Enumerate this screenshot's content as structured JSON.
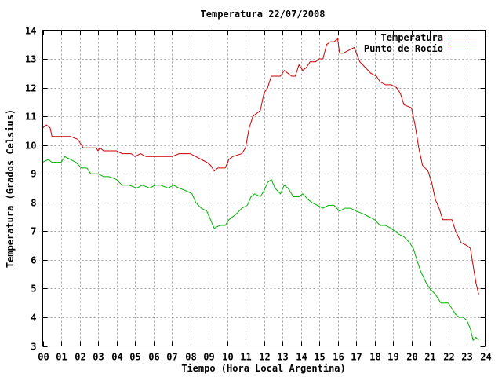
{
  "chart_data": {
    "type": "line",
    "title": "Temperatura 22/07/2008",
    "xlabel": "Tiempo (Hora Local Argentina)",
    "ylabel": "Temperatura (Grados Celsius)",
    "xlim": [
      0,
      24
    ],
    "ylim": [
      3,
      14
    ],
    "xticks": [
      0,
      1,
      2,
      3,
      4,
      5,
      6,
      7,
      8,
      9,
      10,
      11,
      12,
      13,
      14,
      15,
      16,
      17,
      18,
      19,
      20,
      21,
      22,
      23,
      24
    ],
    "xtick_labels": [
      "00",
      "01",
      "02",
      "03",
      "04",
      "05",
      "06",
      "07",
      "08",
      "09",
      "10",
      "11",
      "12",
      "13",
      "14",
      "15",
      "16",
      "17",
      "18",
      "19",
      "20",
      "21",
      "22",
      "23",
      "24"
    ],
    "yticks": [
      3,
      4,
      5,
      6,
      7,
      8,
      9,
      10,
      11,
      12,
      13,
      14
    ],
    "ytick_labels": [
      "3",
      "4",
      "5",
      "6",
      "7",
      "8",
      "9",
      "10",
      "11",
      "12",
      "13",
      "14"
    ],
    "grid": true,
    "legend_position": "top-right",
    "series": [
      {
        "name": "Temperatura",
        "color": "#cc0000",
        "points": [
          [
            0.0,
            10.6
          ],
          [
            0.2,
            10.7
          ],
          [
            0.4,
            10.6
          ],
          [
            0.5,
            10.3
          ],
          [
            1.0,
            10.3
          ],
          [
            1.5,
            10.3
          ],
          [
            1.9,
            10.2
          ],
          [
            2.2,
            9.9
          ],
          [
            2.5,
            9.9
          ],
          [
            2.9,
            9.9
          ],
          [
            3.0,
            9.8
          ],
          [
            3.1,
            9.9
          ],
          [
            3.3,
            9.8
          ],
          [
            3.7,
            9.8
          ],
          [
            4.0,
            9.8
          ],
          [
            4.3,
            9.7
          ],
          [
            4.8,
            9.7
          ],
          [
            5.0,
            9.6
          ],
          [
            5.3,
            9.7
          ],
          [
            5.6,
            9.6
          ],
          [
            6.0,
            9.6
          ],
          [
            6.5,
            9.6
          ],
          [
            7.0,
            9.6
          ],
          [
            7.4,
            9.7
          ],
          [
            8.0,
            9.7
          ],
          [
            8.3,
            9.6
          ],
          [
            8.6,
            9.5
          ],
          [
            8.9,
            9.4
          ],
          [
            9.1,
            9.3
          ],
          [
            9.3,
            9.1
          ],
          [
            9.5,
            9.2
          ],
          [
            9.9,
            9.2
          ],
          [
            10.1,
            9.5
          ],
          [
            10.3,
            9.6
          ],
          [
            10.8,
            9.7
          ],
          [
            11.0,
            9.9
          ],
          [
            11.2,
            10.6
          ],
          [
            11.4,
            11.0
          ],
          [
            11.8,
            11.2
          ],
          [
            12.0,
            11.8
          ],
          [
            12.2,
            12.0
          ],
          [
            12.4,
            12.4
          ],
          [
            12.9,
            12.4
          ],
          [
            13.1,
            12.6
          ],
          [
            13.3,
            12.5
          ],
          [
            13.5,
            12.4
          ],
          [
            13.7,
            12.4
          ],
          [
            13.9,
            12.8
          ],
          [
            14.1,
            12.6
          ],
          [
            14.3,
            12.7
          ],
          [
            14.5,
            12.9
          ],
          [
            14.8,
            12.9
          ],
          [
            15.0,
            13.0
          ],
          [
            15.2,
            13.0
          ],
          [
            15.4,
            13.5
          ],
          [
            15.6,
            13.6
          ],
          [
            15.8,
            13.6
          ],
          [
            16.0,
            13.7
          ],
          [
            16.1,
            13.2
          ],
          [
            16.3,
            13.2
          ],
          [
            16.6,
            13.3
          ],
          [
            16.9,
            13.4
          ],
          [
            17.2,
            12.9
          ],
          [
            17.5,
            12.7
          ],
          [
            17.8,
            12.5
          ],
          [
            18.1,
            12.4
          ],
          [
            18.3,
            12.2
          ],
          [
            18.6,
            12.1
          ],
          [
            18.9,
            12.1
          ],
          [
            19.2,
            12.0
          ],
          [
            19.4,
            11.8
          ],
          [
            19.6,
            11.4
          ],
          [
            20.0,
            11.3
          ],
          [
            20.2,
            10.7
          ],
          [
            20.4,
            9.9
          ],
          [
            20.6,
            9.3
          ],
          [
            20.9,
            9.1
          ],
          [
            21.1,
            8.7
          ],
          [
            21.3,
            8.1
          ],
          [
            21.5,
            7.8
          ],
          [
            21.7,
            7.4
          ],
          [
            22.2,
            7.4
          ],
          [
            22.4,
            7.0
          ],
          [
            22.7,
            6.6
          ],
          [
            23.0,
            6.5
          ],
          [
            23.2,
            6.4
          ],
          [
            23.4,
            5.6
          ],
          [
            23.5,
            5.2
          ],
          [
            23.65,
            4.8
          ]
        ]
      },
      {
        "name": "Punto de Rocío",
        "color": "#00b000",
        "points": [
          [
            0.0,
            9.4
          ],
          [
            0.3,
            9.5
          ],
          [
            0.5,
            9.4
          ],
          [
            1.0,
            9.4
          ],
          [
            1.2,
            9.6
          ],
          [
            1.5,
            9.5
          ],
          [
            1.8,
            9.4
          ],
          [
            2.1,
            9.2
          ],
          [
            2.4,
            9.2
          ],
          [
            2.6,
            9.0
          ],
          [
            3.0,
            9.0
          ],
          [
            3.3,
            8.9
          ],
          [
            3.6,
            8.9
          ],
          [
            4.0,
            8.8
          ],
          [
            4.3,
            8.6
          ],
          [
            4.7,
            8.6
          ],
          [
            5.1,
            8.5
          ],
          [
            5.4,
            8.6
          ],
          [
            5.8,
            8.5
          ],
          [
            6.1,
            8.6
          ],
          [
            6.4,
            8.6
          ],
          [
            6.8,
            8.5
          ],
          [
            7.1,
            8.6
          ],
          [
            7.4,
            8.5
          ],
          [
            7.8,
            8.4
          ],
          [
            8.1,
            8.3
          ],
          [
            8.3,
            8.0
          ],
          [
            8.6,
            7.8
          ],
          [
            8.9,
            7.7
          ],
          [
            9.1,
            7.4
          ],
          [
            9.3,
            7.1
          ],
          [
            9.6,
            7.2
          ],
          [
            9.9,
            7.2
          ],
          [
            10.1,
            7.4
          ],
          [
            10.5,
            7.6
          ],
          [
            10.8,
            7.8
          ],
          [
            11.1,
            7.9
          ],
          [
            11.3,
            8.2
          ],
          [
            11.5,
            8.3
          ],
          [
            11.8,
            8.2
          ],
          [
            12.0,
            8.4
          ],
          [
            12.2,
            8.7
          ],
          [
            12.4,
            8.8
          ],
          [
            12.6,
            8.5
          ],
          [
            12.9,
            8.3
          ],
          [
            13.1,
            8.6
          ],
          [
            13.3,
            8.5
          ],
          [
            13.6,
            8.2
          ],
          [
            13.9,
            8.2
          ],
          [
            14.1,
            8.3
          ],
          [
            14.4,
            8.1
          ],
          [
            14.6,
            8.0
          ],
          [
            14.9,
            7.9
          ],
          [
            15.2,
            7.8
          ],
          [
            15.5,
            7.9
          ],
          [
            15.8,
            7.9
          ],
          [
            16.1,
            7.7
          ],
          [
            16.4,
            7.8
          ],
          [
            16.7,
            7.8
          ],
          [
            17.0,
            7.7
          ],
          [
            17.4,
            7.6
          ],
          [
            17.7,
            7.5
          ],
          [
            18.0,
            7.4
          ],
          [
            18.3,
            7.2
          ],
          [
            18.6,
            7.2
          ],
          [
            18.9,
            7.1
          ],
          [
            19.1,
            7.0
          ],
          [
            19.3,
            6.9
          ],
          [
            19.6,
            6.8
          ],
          [
            19.9,
            6.6
          ],
          [
            20.1,
            6.4
          ],
          [
            20.3,
            6.0
          ],
          [
            20.5,
            5.6
          ],
          [
            20.8,
            5.2
          ],
          [
            21.0,
            5.0
          ],
          [
            21.3,
            4.8
          ],
          [
            21.6,
            4.5
          ],
          [
            22.0,
            4.5
          ],
          [
            22.2,
            4.3
          ],
          [
            22.4,
            4.1
          ],
          [
            22.6,
            4.0
          ],
          [
            22.8,
            4.0
          ],
          [
            23.0,
            3.9
          ],
          [
            23.2,
            3.6
          ],
          [
            23.35,
            3.2
          ],
          [
            23.5,
            3.3
          ],
          [
            23.65,
            3.2
          ]
        ]
      }
    ]
  }
}
